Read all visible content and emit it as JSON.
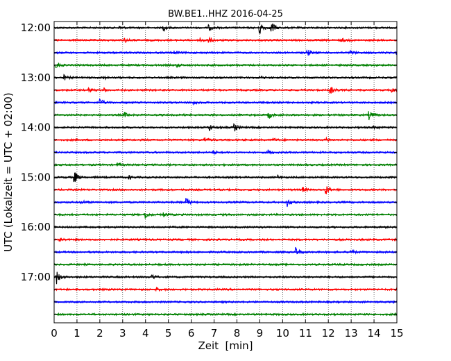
{
  "chart_data": {
    "type": "line",
    "title": "BW.BE1..HHZ 2016-04-25",
    "xlabel": "Zeit  [min]",
    "ylabel": "UTC (Lokalzeit = UTC + 02:00)",
    "xlim": [
      0,
      15
    ],
    "x_ticks": [
      "0",
      "1",
      "2",
      "3",
      "4",
      "5",
      "6",
      "7",
      "8",
      "9",
      "10",
      "11",
      "12",
      "13",
      "14",
      "15"
    ],
    "y_tick_labels": [
      "12:00",
      "13:00",
      "14:00",
      "15:00",
      "16:00",
      "17:00"
    ],
    "grid": "vertical dotted",
    "trace_colors": [
      "#000000",
      "#ff0000",
      "#0000ff",
      "#008000"
    ],
    "series": [
      {
        "start": "12:00",
        "color": "#000000",
        "events": [
          {
            "t": 4.8,
            "amp": 0.4
          },
          {
            "t": 6.8,
            "amp": 0.35
          },
          {
            "t": 9.0,
            "amp": 1.1
          },
          {
            "t": 9.5,
            "amp": 1.2
          },
          {
            "t": 2.9,
            "amp": 0.25
          }
        ]
      },
      {
        "start": "12:15",
        "color": "#ff0000",
        "events": [
          {
            "t": 3.1,
            "amp": 0.3
          },
          {
            "t": 6.4,
            "amp": 0.45
          },
          {
            "t": 6.8,
            "amp": 0.3
          },
          {
            "t": 12.6,
            "amp": 0.25
          }
        ]
      },
      {
        "start": "12:30",
        "color": "#0000ff",
        "events": [
          {
            "t": 5.3,
            "amp": 0.3
          },
          {
            "t": 11.1,
            "amp": 0.45
          },
          {
            "t": 13.0,
            "amp": 0.3
          },
          {
            "t": 15.0,
            "amp": 0.3
          }
        ]
      },
      {
        "start": "12:45",
        "color": "#008000",
        "events": [
          {
            "t": 0.1,
            "amp": 0.6
          },
          {
            "t": 5.4,
            "amp": 0.25
          }
        ]
      },
      {
        "start": "13:00",
        "color": "#000000",
        "events": [
          {
            "t": 0.45,
            "amp": 0.35
          },
          {
            "t": 2.1,
            "amp": 0.35
          },
          {
            "t": 9.0,
            "amp": 0.25
          }
        ]
      },
      {
        "start": "13:15",
        "color": "#ff0000",
        "events": [
          {
            "t": 1.5,
            "amp": 0.4
          },
          {
            "t": 2.2,
            "amp": 0.3
          },
          {
            "t": 12.1,
            "amp": 0.6
          },
          {
            "t": 14.8,
            "amp": 0.3
          }
        ]
      },
      {
        "start": "13:30",
        "color": "#0000ff",
        "events": [
          {
            "t": 2.0,
            "amp": 0.6
          },
          {
            "t": 6.1,
            "amp": 0.25
          }
        ]
      },
      {
        "start": "13:45",
        "color": "#008000",
        "events": [
          {
            "t": 3.1,
            "amp": 0.35
          },
          {
            "t": 9.4,
            "amp": 0.55
          },
          {
            "t": 13.8,
            "amp": 0.7
          }
        ]
      },
      {
        "start": "14:00",
        "color": "#000000",
        "events": [
          {
            "t": 6.8,
            "amp": 0.55
          },
          {
            "t": 7.9,
            "amp": 0.6
          },
          {
            "t": 14.0,
            "amp": 0.25
          }
        ]
      },
      {
        "start": "14:15",
        "color": "#ff0000",
        "events": [
          {
            "t": 6.6,
            "amp": 0.35
          },
          {
            "t": 9.6,
            "amp": 0.25
          },
          {
            "t": 11.9,
            "amp": 0.35
          }
        ]
      },
      {
        "start": "14:30",
        "color": "#0000ff",
        "events": [
          {
            "t": 7.0,
            "amp": 0.25
          },
          {
            "t": 9.4,
            "amp": 0.35
          }
        ]
      },
      {
        "start": "14:45",
        "color": "#008000",
        "events": [
          {
            "t": 2.8,
            "amp": 0.25
          }
        ]
      },
      {
        "start": "15:00",
        "color": "#000000",
        "events": [
          {
            "t": 0.9,
            "amp": 1.0
          },
          {
            "t": 3.3,
            "amp": 0.25
          },
          {
            "t": 9.8,
            "amp": 0.25
          }
        ]
      },
      {
        "start": "15:15",
        "color": "#ff0000",
        "events": [
          {
            "t": 10.9,
            "amp": 0.35
          },
          {
            "t": 11.9,
            "amp": 0.75
          }
        ]
      },
      {
        "start": "15:30",
        "color": "#0000ff",
        "events": [
          {
            "t": 1.2,
            "amp": 0.3
          },
          {
            "t": 5.8,
            "amp": 0.75
          },
          {
            "t": 10.2,
            "amp": 0.65
          }
        ]
      },
      {
        "start": "15:45",
        "color": "#008000",
        "events": [
          {
            "t": 4.0,
            "amp": 0.6
          },
          {
            "t": 4.8,
            "amp": 0.3
          }
        ]
      },
      {
        "start": "16:00",
        "color": "#000000",
        "events": []
      },
      {
        "start": "16:15",
        "color": "#ff0000",
        "events": [
          {
            "t": 0.25,
            "amp": 0.3
          }
        ]
      },
      {
        "start": "16:30",
        "color": "#0000ff",
        "events": [
          {
            "t": 10.6,
            "amp": 0.65
          },
          {
            "t": 13.0,
            "amp": 0.35
          }
        ]
      },
      {
        "start": "16:45",
        "color": "#008000",
        "events": []
      },
      {
        "start": "17:00",
        "color": "#000000",
        "events": [
          {
            "t": 0.1,
            "amp": 1.1
          },
          {
            "t": 4.3,
            "amp": 0.4
          }
        ]
      },
      {
        "start": "17:15",
        "color": "#ff0000",
        "events": [
          {
            "t": 4.5,
            "amp": 0.2
          }
        ]
      },
      {
        "start": "17:30",
        "color": "#0000ff",
        "events": []
      },
      {
        "start": "17:45",
        "color": "#008000",
        "events": []
      }
    ]
  }
}
